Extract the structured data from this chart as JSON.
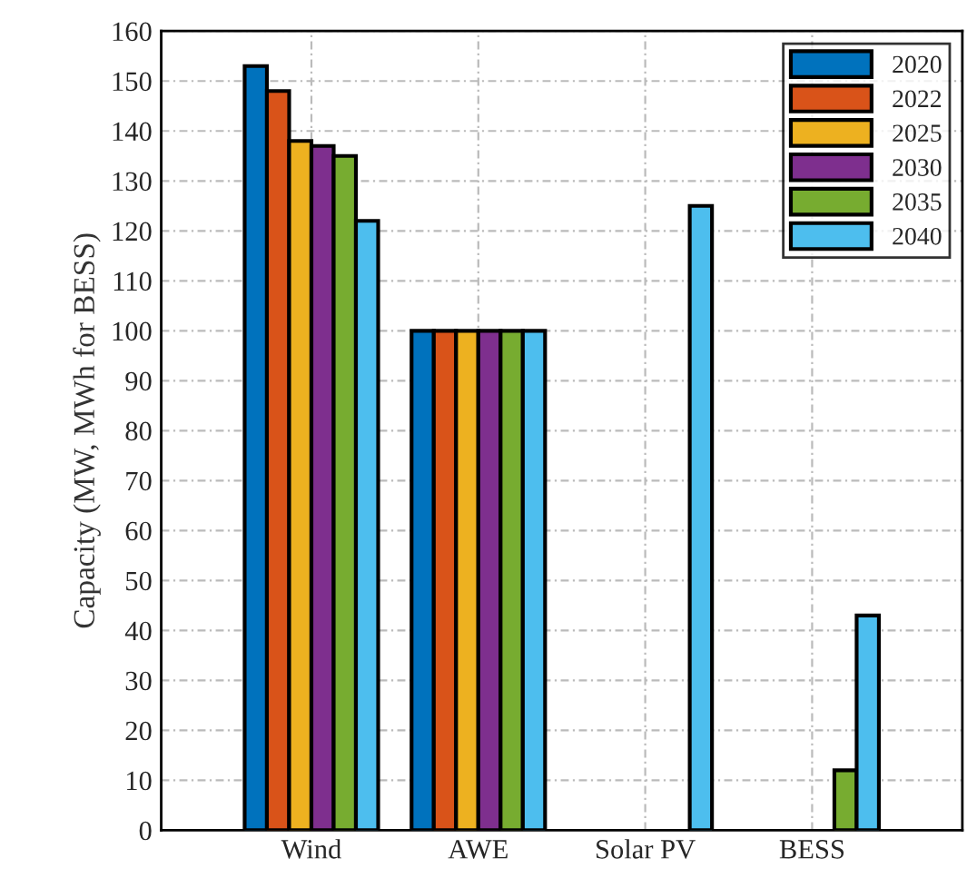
{
  "chart_data": {
    "type": "bar",
    "ylabel": "Capacity (MW, MWh for BESS)",
    "categories": [
      "Wind",
      "AWE",
      "Solar PV",
      "BESS"
    ],
    "series": [
      {
        "name": "2020",
        "color": "#0072bd",
        "values": [
          153,
          100,
          null,
          null
        ]
      },
      {
        "name": "2022",
        "color": "#d95319",
        "values": [
          148,
          100,
          null,
          null
        ]
      },
      {
        "name": "2025",
        "color": "#edb120",
        "values": [
          138,
          100,
          null,
          null
        ]
      },
      {
        "name": "2030",
        "color": "#7e2f8e",
        "values": [
          137,
          100,
          null,
          null
        ]
      },
      {
        "name": "2035",
        "color": "#77ac30",
        "values": [
          135,
          100,
          null,
          12
        ]
      },
      {
        "name": "2040",
        "color": "#4dbeee",
        "values": [
          122,
          100,
          125,
          43
        ]
      }
    ],
    "ylim": [
      0,
      160
    ],
    "yticks": [
      0,
      10,
      20,
      30,
      40,
      50,
      60,
      70,
      80,
      90,
      100,
      110,
      120,
      130,
      140,
      150,
      160
    ],
    "grid": true,
    "legend": "top right"
  }
}
